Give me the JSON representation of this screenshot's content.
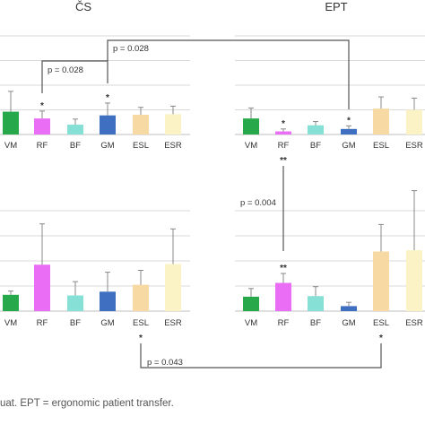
{
  "caption": "uat. EPT = ergonomic patient transfer.",
  "colors": {
    "VM": "#27a84a",
    "RF": "#ea6ef5",
    "BF": "#86e0d6",
    "GM": "#3e6fc0",
    "ESL": "#f7d9a4",
    "ESR": "#fbf3c5",
    "grid": "#d9d9d9",
    "line": "#555555"
  },
  "chart_data": [
    {
      "type": "bar",
      "id": "top-left",
      "title": "ČS",
      "categories": [
        "VM",
        "RF",
        "BF",
        "GM",
        "ESL",
        "ESR"
      ],
      "values": [
        0.37,
        0.26,
        0.16,
        0.31,
        0.32,
        0.33
      ],
      "errors": [
        0.33,
        0.12,
        0.09,
        0.2,
        0.12,
        0.13
      ],
      "ylim": [
        0,
        1.6
      ],
      "stars": {
        "RF": "*",
        "GM": "*"
      }
    },
    {
      "type": "bar",
      "id": "top-right",
      "title": "EPT",
      "categories": [
        "VM",
        "RF",
        "BF",
        "GM",
        "ESL",
        "ESR"
      ],
      "values": [
        0.26,
        0.05,
        0.15,
        0.09,
        0.42,
        0.4
      ],
      "errors": [
        0.17,
        0.04,
        0.06,
        0.05,
        0.19,
        0.19
      ],
      "ylim": [
        0,
        1.6
      ],
      "stars": {
        "RF": "*",
        "GM": "*"
      }
    },
    {
      "type": "bar",
      "id": "bottom-left",
      "categories": [
        "VM",
        "RF",
        "BF",
        "GM",
        "ESL",
        "ESR"
      ],
      "values": [
        0.26,
        0.74,
        0.25,
        0.31,
        0.42,
        0.75
      ],
      "errors": [
        0.06,
        0.65,
        0.22,
        0.31,
        0.23,
        0.56
      ],
      "ylim": [
        0,
        1.6
      ]
    },
    {
      "type": "bar",
      "id": "bottom-right",
      "categories": [
        "VM",
        "RF",
        "BF",
        "GM",
        "ESL",
        "ESR"
      ],
      "values": [
        0.23,
        0.45,
        0.24,
        0.08,
        0.95,
        0.97
      ],
      "errors": [
        0.13,
        0.15,
        0.15,
        0.06,
        0.43,
        0.95
      ],
      "ylim": [
        0,
        1.6
      ],
      "stars": {
        "RF": "**"
      }
    }
  ],
  "comparisons": [
    {
      "label": "p = 0.028"
    },
    {
      "label": "p = 0.028"
    },
    {
      "label": "p = 0.004",
      "stars": "**"
    },
    {
      "label": "p = 0.043",
      "stars": "*"
    }
  ]
}
